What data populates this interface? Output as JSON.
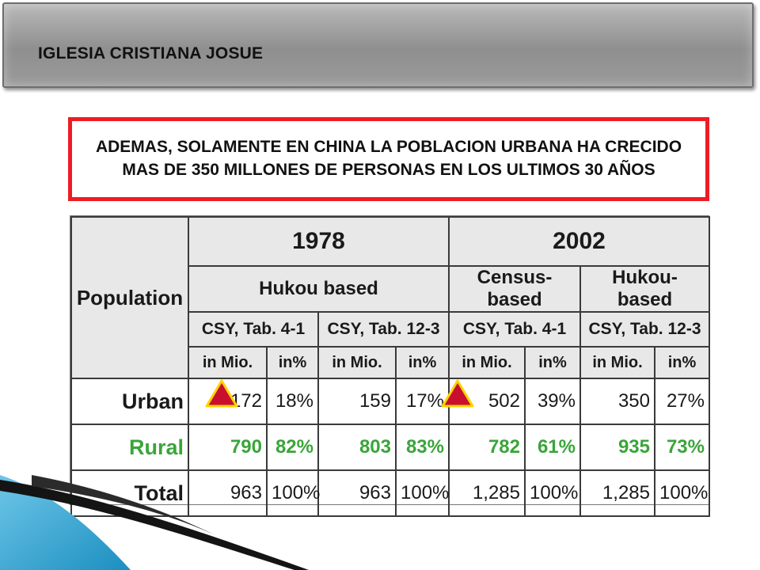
{
  "header": {
    "title": "IGLESIA CRISTIANA JOSUE"
  },
  "callout": {
    "text": "ADEMAS, SOLAMENTE EN CHINA LA POBLACION URBANA HA CRECIDO MAS DE 350 MILLONES DE PERSONAS EN LOS ULTIMOS 30 AÑOS"
  },
  "table": {
    "corner": "Population",
    "years": [
      "1978",
      "2002"
    ],
    "bases": [
      "Hukou based",
      "Census-based",
      "Hukou-based"
    ],
    "sources": [
      "CSY, Tab. 4-1",
      "CSY, Tab. 12-3",
      "CSY, Tab. 4-1",
      "CSY, Tab. 12-3"
    ],
    "units": [
      "in Mio.",
      "in%",
      "in Mio.",
      "in%",
      "in Mio.",
      "in%",
      "in Mio.",
      "in%"
    ],
    "rows": [
      {
        "label": "Urban",
        "values": [
          "172",
          "18%",
          "159",
          "17%",
          "502",
          "39%",
          "350",
          "27%"
        ]
      },
      {
        "label": "Rural",
        "values": [
          "790",
          "82%",
          "803",
          "83%",
          "782",
          "61%",
          "935",
          "73%"
        ]
      },
      {
        "label": "Total",
        "values": [
          "963",
          "100%",
          "963",
          "100%",
          "1,285",
          "100%",
          "1,285",
          "100%"
        ]
      }
    ]
  },
  "colors": {
    "callout_border": "#ee1c25",
    "rural_text": "#3aa53a",
    "arrow_fill": "#c8102e",
    "arrow_outline": "#ffd400",
    "decor_blue": "#1b8fc0"
  },
  "icons": {
    "marker": "up-triangle-icon"
  }
}
